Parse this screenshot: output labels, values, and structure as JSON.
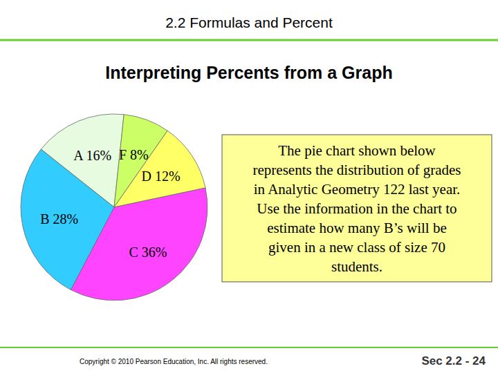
{
  "chart_data": {
    "type": "pie",
    "categories": [
      "A",
      "F",
      "D",
      "C",
      "B"
    ],
    "values": [
      16,
      8,
      12,
      36,
      28
    ],
    "value_labels": [
      "16%",
      "8%",
      "12%",
      "36%",
      "28%"
    ],
    "colors": [
      "#e6fbe0",
      "#ccff66",
      "#ffff66",
      "#ff44ff",
      "#33ccff"
    ],
    "data_labels": true
  },
  "slide": {
    "header": "2.2 Formulas and Percent",
    "title": "Interpreting Percents from a Graph",
    "problem": [
      "The pie chart shown below",
      "represents the distribution of grades",
      "in Analytic Geometry 122 last year.",
      "Use the information in the chart to",
      "estimate how many B’s will be",
      "given in a new class of size 70",
      "students."
    ],
    "copyright": "Copyright © 2010 Pearson Education, Inc.  All rights reserved.",
    "page": "Sec 2.2 - 24"
  }
}
